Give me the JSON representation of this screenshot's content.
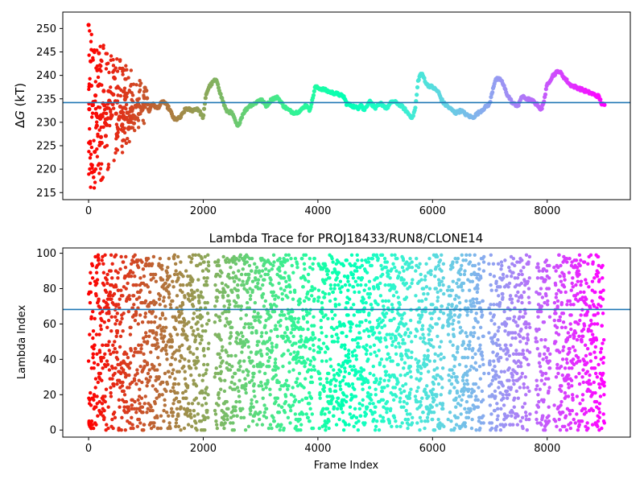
{
  "chart_data": [
    {
      "type": "scatter",
      "title": "",
      "xlabel": "",
      "ylabel": "ΔG (kT)",
      "ylabel_prefix": "Δ",
      "ylabel_var": "G",
      "ylabel_unit": " (kT)",
      "xlim": [
        -450,
        9450
      ],
      "ylim": [
        213.5,
        253.5
      ],
      "xticks": [
        0,
        2000,
        4000,
        6000,
        8000
      ],
      "xtick_labels": [
        "0",
        "2000",
        "4000",
        "6000",
        "8000"
      ],
      "yticks": [
        215,
        220,
        225,
        230,
        235,
        240,
        245,
        250
      ],
      "ytick_labels": [
        "215",
        "220",
        "225",
        "230",
        "235",
        "240",
        "245",
        "250"
      ],
      "hline": 234.2,
      "hline_color": "#1f77b4",
      "colormap": "rainbow (reversed along frame index: red at frame 0, purple at frame 9000)",
      "x_range": [
        0,
        9000
      ],
      "trace": [
        {
          "x": 0,
          "y": 250
        },
        {
          "x": 20,
          "y": 220
        },
        {
          "x": 40,
          "y": 248
        },
        {
          "x": 60,
          "y": 222
        },
        {
          "x": 80,
          "y": 240
        },
        {
          "x": 100,
          "y": 216
        },
        {
          "x": 120,
          "y": 236
        },
        {
          "x": 150,
          "y": 228
        },
        {
          "x": 180,
          "y": 244
        },
        {
          "x": 220,
          "y": 224
        },
        {
          "x": 260,
          "y": 238
        },
        {
          "x": 300,
          "y": 228
        },
        {
          "x": 350,
          "y": 236
        },
        {
          "x": 400,
          "y": 230
        },
        {
          "x": 450,
          "y": 240
        },
        {
          "x": 500,
          "y": 226
        },
        {
          "x": 550,
          "y": 234
        },
        {
          "x": 600,
          "y": 229
        },
        {
          "x": 650,
          "y": 236
        },
        {
          "x": 700,
          "y": 229
        },
        {
          "x": 750,
          "y": 233
        },
        {
          "x": 800,
          "y": 230
        },
        {
          "x": 850,
          "y": 234
        },
        {
          "x": 900,
          "y": 232
        },
        {
          "x": 950,
          "y": 234
        },
        {
          "x": 1000,
          "y": 237.5
        },
        {
          "x": 1050,
          "y": 232
        },
        {
          "x": 1100,
          "y": 234
        },
        {
          "x": 1200,
          "y": 233
        },
        {
          "x": 1300,
          "y": 234.5
        },
        {
          "x": 1400,
          "y": 233
        },
        {
          "x": 1500,
          "y": 230.5
        },
        {
          "x": 1600,
          "y": 231
        },
        {
          "x": 1700,
          "y": 233
        },
        {
          "x": 1800,
          "y": 232.5
        },
        {
          "x": 1900,
          "y": 233
        },
        {
          "x": 2000,
          "y": 231
        },
        {
          "x": 2050,
          "y": 236
        },
        {
          "x": 2100,
          "y": 237.5
        },
        {
          "x": 2200,
          "y": 239
        },
        {
          "x": 2250,
          "y": 238.5
        },
        {
          "x": 2300,
          "y": 236
        },
        {
          "x": 2400,
          "y": 232.5
        },
        {
          "x": 2500,
          "y": 232
        },
        {
          "x": 2600,
          "y": 229
        },
        {
          "x": 2700,
          "y": 232
        },
        {
          "x": 2800,
          "y": 233.5
        },
        {
          "x": 2900,
          "y": 234
        },
        {
          "x": 3000,
          "y": 235
        },
        {
          "x": 3100,
          "y": 233.5
        },
        {
          "x": 3200,
          "y": 235
        },
        {
          "x": 3300,
          "y": 235.3
        },
        {
          "x": 3400,
          "y": 233.5
        },
        {
          "x": 3500,
          "y": 232.5
        },
        {
          "x": 3600,
          "y": 232
        },
        {
          "x": 3700,
          "y": 232.5
        },
        {
          "x": 3800,
          "y": 233.8
        },
        {
          "x": 3850,
          "y": 232.5
        },
        {
          "x": 3900,
          "y": 234.5
        },
        {
          "x": 3950,
          "y": 237.5
        },
        {
          "x": 4100,
          "y": 237
        },
        {
          "x": 4200,
          "y": 236.5
        },
        {
          "x": 4350,
          "y": 236
        },
        {
          "x": 4450,
          "y": 235.5
        },
        {
          "x": 4500,
          "y": 234
        },
        {
          "x": 4600,
          "y": 233.5
        },
        {
          "x": 4700,
          "y": 233
        },
        {
          "x": 4750,
          "y": 234
        },
        {
          "x": 4800,
          "y": 232.5
        },
        {
          "x": 4900,
          "y": 234.5
        },
        {
          "x": 5000,
          "y": 233
        },
        {
          "x": 5100,
          "y": 234
        },
        {
          "x": 5200,
          "y": 233
        },
        {
          "x": 5300,
          "y": 234.5
        },
        {
          "x": 5400,
          "y": 234
        },
        {
          "x": 5500,
          "y": 233
        },
        {
          "x": 5600,
          "y": 231.5
        },
        {
          "x": 5650,
          "y": 231
        },
        {
          "x": 5700,
          "y": 233
        },
        {
          "x": 5750,
          "y": 239
        },
        {
          "x": 5800,
          "y": 240.5
        },
        {
          "x": 5850,
          "y": 239.5
        },
        {
          "x": 5900,
          "y": 238
        },
        {
          "x": 6000,
          "y": 237.5
        },
        {
          "x": 6100,
          "y": 236.5
        },
        {
          "x": 6150,
          "y": 235
        },
        {
          "x": 6200,
          "y": 234
        },
        {
          "x": 6300,
          "y": 233
        },
        {
          "x": 6400,
          "y": 232
        },
        {
          "x": 6500,
          "y": 232.5
        },
        {
          "x": 6600,
          "y": 231.5
        },
        {
          "x": 6700,
          "y": 231
        },
        {
          "x": 6800,
          "y": 232
        },
        {
          "x": 6900,
          "y": 233
        },
        {
          "x": 7000,
          "y": 234
        },
        {
          "x": 7050,
          "y": 237
        },
        {
          "x": 7100,
          "y": 239.3
        },
        {
          "x": 7200,
          "y": 239
        },
        {
          "x": 7300,
          "y": 236
        },
        {
          "x": 7400,
          "y": 234
        },
        {
          "x": 7500,
          "y": 233.5
        },
        {
          "x": 7550,
          "y": 235.5
        },
        {
          "x": 7650,
          "y": 235
        },
        {
          "x": 7750,
          "y": 234.5
        },
        {
          "x": 7850,
          "y": 233.5
        },
        {
          "x": 7900,
          "y": 232.5
        },
        {
          "x": 7950,
          "y": 235
        },
        {
          "x": 8000,
          "y": 238
        },
        {
          "x": 8100,
          "y": 240
        },
        {
          "x": 8200,
          "y": 241
        },
        {
          "x": 8300,
          "y": 239.5
        },
        {
          "x": 8400,
          "y": 238
        },
        {
          "x": 8500,
          "y": 237.5
        },
        {
          "x": 8600,
          "y": 237
        },
        {
          "x": 8700,
          "y": 236.5
        },
        {
          "x": 8800,
          "y": 236
        },
        {
          "x": 8900,
          "y": 235.5
        },
        {
          "x": 8950,
          "y": 234
        },
        {
          "x": 9000,
          "y": 233.5
        }
      ],
      "early_scatter": {
        "x_range": [
          0,
          1000
        ],
        "y_spread": [
          216,
          250
        ],
        "note": "widely scattered points near the start converging toward the line"
      }
    },
    {
      "type": "scatter",
      "title": "Lambda Trace for PROJ18433/RUN8/CLONE14",
      "xlabel": "Frame Index",
      "ylabel": "Lambda Index",
      "xlim": [
        -450,
        9450
      ],
      "ylim": [
        -4,
        103
      ],
      "xticks": [
        0,
        2000,
        4000,
        6000,
        8000
      ],
      "xtick_labels": [
        "0",
        "2000",
        "4000",
        "6000",
        "8000"
      ],
      "yticks": [
        0,
        20,
        40,
        60,
        80,
        100
      ],
      "ytick_labels": [
        "0",
        "20",
        "40",
        "60",
        "80",
        "100"
      ],
      "hline": 68.2,
      "hline_color": "#1f77b4",
      "colormap": "rainbow (reversed along frame index: red at frame 0, purple at frame 9000)",
      "x_range": [
        0,
        9000
      ],
      "y_range": [
        0,
        99
      ],
      "points_note": "lambda index sampled every frame, densely spread across 0–99"
    }
  ]
}
